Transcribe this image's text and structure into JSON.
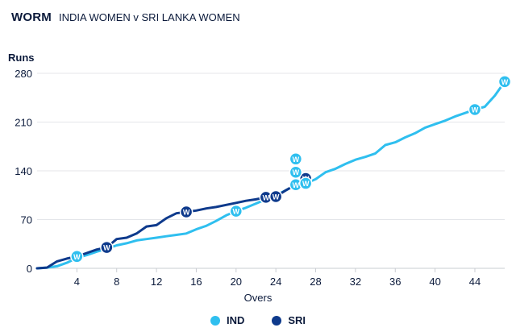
{
  "header": {
    "title": "WORM",
    "match": "INDIA WOMEN v SRI LANKA WOMEN"
  },
  "chart_data": {
    "type": "line",
    "title": "WORM",
    "xlabel": "Overs",
    "ylabel": "Runs",
    "xlim": [
      0,
      47
    ],
    "ylim": [
      0,
      280
    ],
    "xticks": [
      4,
      8,
      12,
      16,
      20,
      24,
      28,
      32,
      36,
      40,
      44
    ],
    "yticks": [
      0,
      70,
      140,
      210,
      280
    ],
    "grid": "horizontal",
    "legend_position": "bottom-center",
    "series": [
      {
        "name": "IND",
        "color": "#2fbfef",
        "points": [
          [
            0,
            0
          ],
          [
            1,
            1
          ],
          [
            2,
            3
          ],
          [
            3,
            8
          ],
          [
            4,
            15
          ],
          [
            5,
            19
          ],
          [
            6,
            24
          ],
          [
            7,
            28
          ],
          [
            8,
            33
          ],
          [
            9,
            36
          ],
          [
            10,
            40
          ],
          [
            11,
            42
          ],
          [
            12,
            44
          ],
          [
            13,
            46
          ],
          [
            14,
            48
          ],
          [
            15,
            50
          ],
          [
            16,
            56
          ],
          [
            17,
            61
          ],
          [
            18,
            68
          ],
          [
            19,
            76
          ],
          [
            20,
            82
          ],
          [
            21,
            87
          ],
          [
            22,
            93
          ],
          [
            23,
            99
          ],
          [
            24,
            105
          ],
          [
            25,
            112
          ],
          [
            26,
            120
          ],
          [
            27,
            122
          ],
          [
            28,
            128
          ],
          [
            29,
            138
          ],
          [
            30,
            143
          ],
          [
            31,
            150
          ],
          [
            32,
            156
          ],
          [
            33,
            160
          ],
          [
            34,
            165
          ],
          [
            35,
            177
          ],
          [
            36,
            181
          ],
          [
            37,
            188
          ],
          [
            38,
            194
          ],
          [
            39,
            202
          ],
          [
            40,
            207
          ],
          [
            41,
            212
          ],
          [
            42,
            218
          ],
          [
            43,
            223
          ],
          [
            44,
            228
          ],
          [
            45,
            232
          ],
          [
            46,
            248
          ],
          [
            47,
            268
          ]
        ],
        "wickets": [
          [
            4,
            17
          ],
          [
            20,
            82
          ],
          [
            26,
            120
          ],
          [
            26,
            138
          ],
          [
            26,
            157
          ],
          [
            27,
            122
          ],
          [
            44,
            228
          ],
          [
            47,
            268
          ]
        ]
      },
      {
        "name": "SRI",
        "color": "#0e3a8c",
        "points": [
          [
            0,
            0
          ],
          [
            1,
            1
          ],
          [
            2,
            10
          ],
          [
            3,
            14
          ],
          [
            4,
            17
          ],
          [
            5,
            22
          ],
          [
            6,
            27
          ],
          [
            7,
            30
          ],
          [
            8,
            42
          ],
          [
            9,
            44
          ],
          [
            10,
            50
          ],
          [
            11,
            60
          ],
          [
            12,
            62
          ],
          [
            13,
            72
          ],
          [
            14,
            79
          ],
          [
            15,
            81
          ],
          [
            16,
            83
          ],
          [
            17,
            86
          ],
          [
            18,
            88
          ],
          [
            19,
            91
          ],
          [
            20,
            94
          ],
          [
            21,
            97
          ],
          [
            22,
            99
          ],
          [
            23,
            102
          ],
          [
            24,
            103
          ],
          [
            25,
            112
          ],
          [
            26,
            120
          ],
          [
            27,
            129
          ]
        ],
        "wickets": [
          [
            7,
            30
          ],
          [
            15,
            81
          ],
          [
            23,
            102
          ],
          [
            24,
            103
          ],
          [
            27,
            129
          ]
        ]
      }
    ]
  },
  "wicket_marker": "W",
  "legend": [
    {
      "label": "IND",
      "color": "#2fbfef"
    },
    {
      "label": "SRI",
      "color": "#0e3a8c"
    }
  ]
}
